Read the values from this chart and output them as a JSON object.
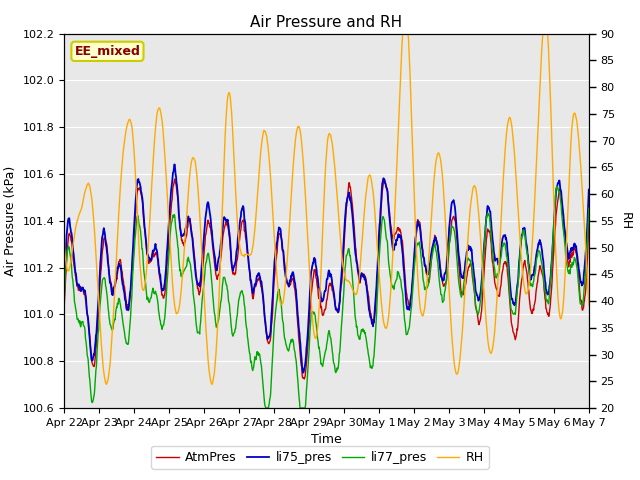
{
  "title": "Air Pressure and RH",
  "xlabel": "Time",
  "ylabel_left": "Air Pressure (kPa)",
  "ylabel_right": "RH",
  "ylim_left": [
    100.6,
    102.2
  ],
  "ylim_right": [
    20,
    90
  ],
  "yticks_left": [
    100.6,
    100.8,
    101.0,
    101.2,
    101.4,
    101.6,
    101.8,
    102.0,
    102.2
  ],
  "yticks_right": [
    20,
    25,
    30,
    35,
    40,
    45,
    50,
    55,
    60,
    65,
    70,
    75,
    80,
    85,
    90
  ],
  "xtick_labels": [
    "Apr 22",
    "Apr 23",
    "Apr 24",
    "Apr 25",
    "Apr 26",
    "Apr 27",
    "Apr 28",
    "Apr 29",
    "Apr 30",
    "May 1",
    "May 2",
    "May 3",
    "May 4",
    "May 5",
    "May 6",
    "May 7"
  ],
  "colors": {
    "AtmPres": "#cc0000",
    "li75_pres": "#0000cc",
    "li77_pres": "#00aa00",
    "RH": "#ffaa00"
  },
  "legend_labels": [
    "AtmPres",
    "li75_pres",
    "li77_pres",
    "RH"
  ],
  "annotation_text": "EE_mixed",
  "annotation_fg": "#880000",
  "annotation_bg": "#ffffcc",
  "annotation_edge": "#cccc00",
  "background_color": "#e8e8e8",
  "grid_color": "#ffffff",
  "figsize": [
    6.4,
    4.8
  ],
  "dpi": 100
}
